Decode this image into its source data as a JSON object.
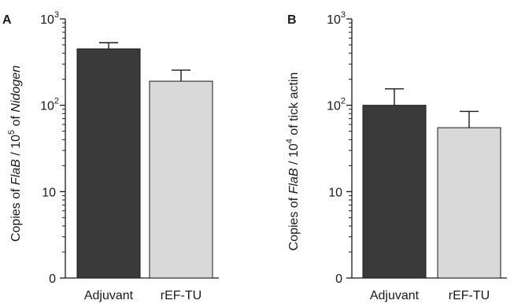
{
  "chart_data": [
    {
      "type": "bar",
      "panel": "A",
      "y_scale": "log",
      "ylabel": {
        "prefix": "Copies of ",
        "italic1": "FlaB",
        "mid": " / 10",
        "exp": "5",
        "mid2": " of ",
        "italic2": "Nidogen",
        "suffix": ""
      },
      "ytick_labels": [
        {
          "base": "0",
          "exp": ""
        },
        {
          "base": "10",
          "exp": ""
        },
        {
          "base": "10",
          "exp": "2"
        },
        {
          "base": "10",
          "exp": "3"
        }
      ],
      "ylim": [
        1,
        1000
      ],
      "categories": [
        "Adjuvant",
        "rEF-TU"
      ],
      "values": [
        450,
        190
      ],
      "error_upper": [
        530,
        255
      ],
      "colors": [
        "#3a3a3a",
        "#d9d9d9"
      ]
    },
    {
      "type": "bar",
      "panel": "B",
      "y_scale": "log",
      "ylabel": {
        "prefix": "Copies of ",
        "italic1": "FlaB",
        "mid": " / 10",
        "exp": "4",
        "mid2": " of tick actin",
        "italic2": "",
        "suffix": ""
      },
      "ytick_labels": [
        {
          "base": "0",
          "exp": ""
        },
        {
          "base": "10",
          "exp": ""
        },
        {
          "base": "10",
          "exp": "2"
        },
        {
          "base": "10",
          "exp": "3"
        }
      ],
      "ylim": [
        1,
        1000
      ],
      "categories": [
        "Adjuvant",
        "rEF-TU"
      ],
      "values": [
        100,
        55
      ],
      "error_upper": [
        155,
        85
      ],
      "colors": [
        "#3a3a3a",
        "#d9d9d9"
      ]
    }
  ]
}
